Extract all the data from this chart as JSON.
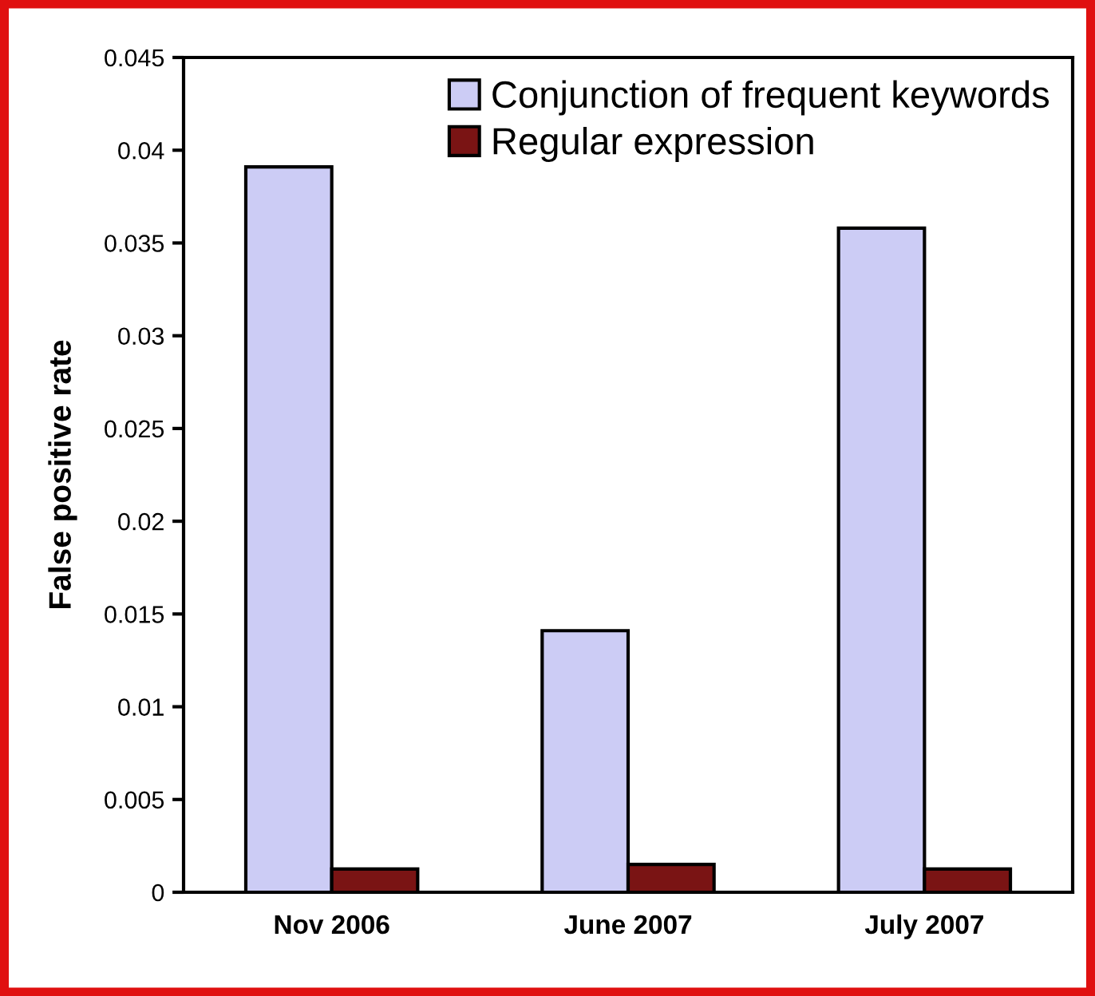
{
  "chart_data": {
    "type": "bar",
    "ylabel": "False positive rate",
    "categories": [
      "Nov 2006",
      "June 2007",
      "July 2007"
    ],
    "series": [
      {
        "name": "Conjunction of frequent keywords",
        "color": "#ccccf5",
        "values": [
          0.0391,
          0.0141,
          0.0358
        ]
      },
      {
        "name": "Regular expression",
        "color": "#7a1414",
        "values": [
          0.00125,
          0.0015,
          0.00125
        ]
      }
    ],
    "ylim": [
      0,
      0.045
    ],
    "yticks": [
      0,
      0.005,
      0.01,
      0.015,
      0.02,
      0.025,
      0.03,
      0.035,
      0.04,
      0.045
    ],
    "grid": false,
    "legend": "top right"
  }
}
